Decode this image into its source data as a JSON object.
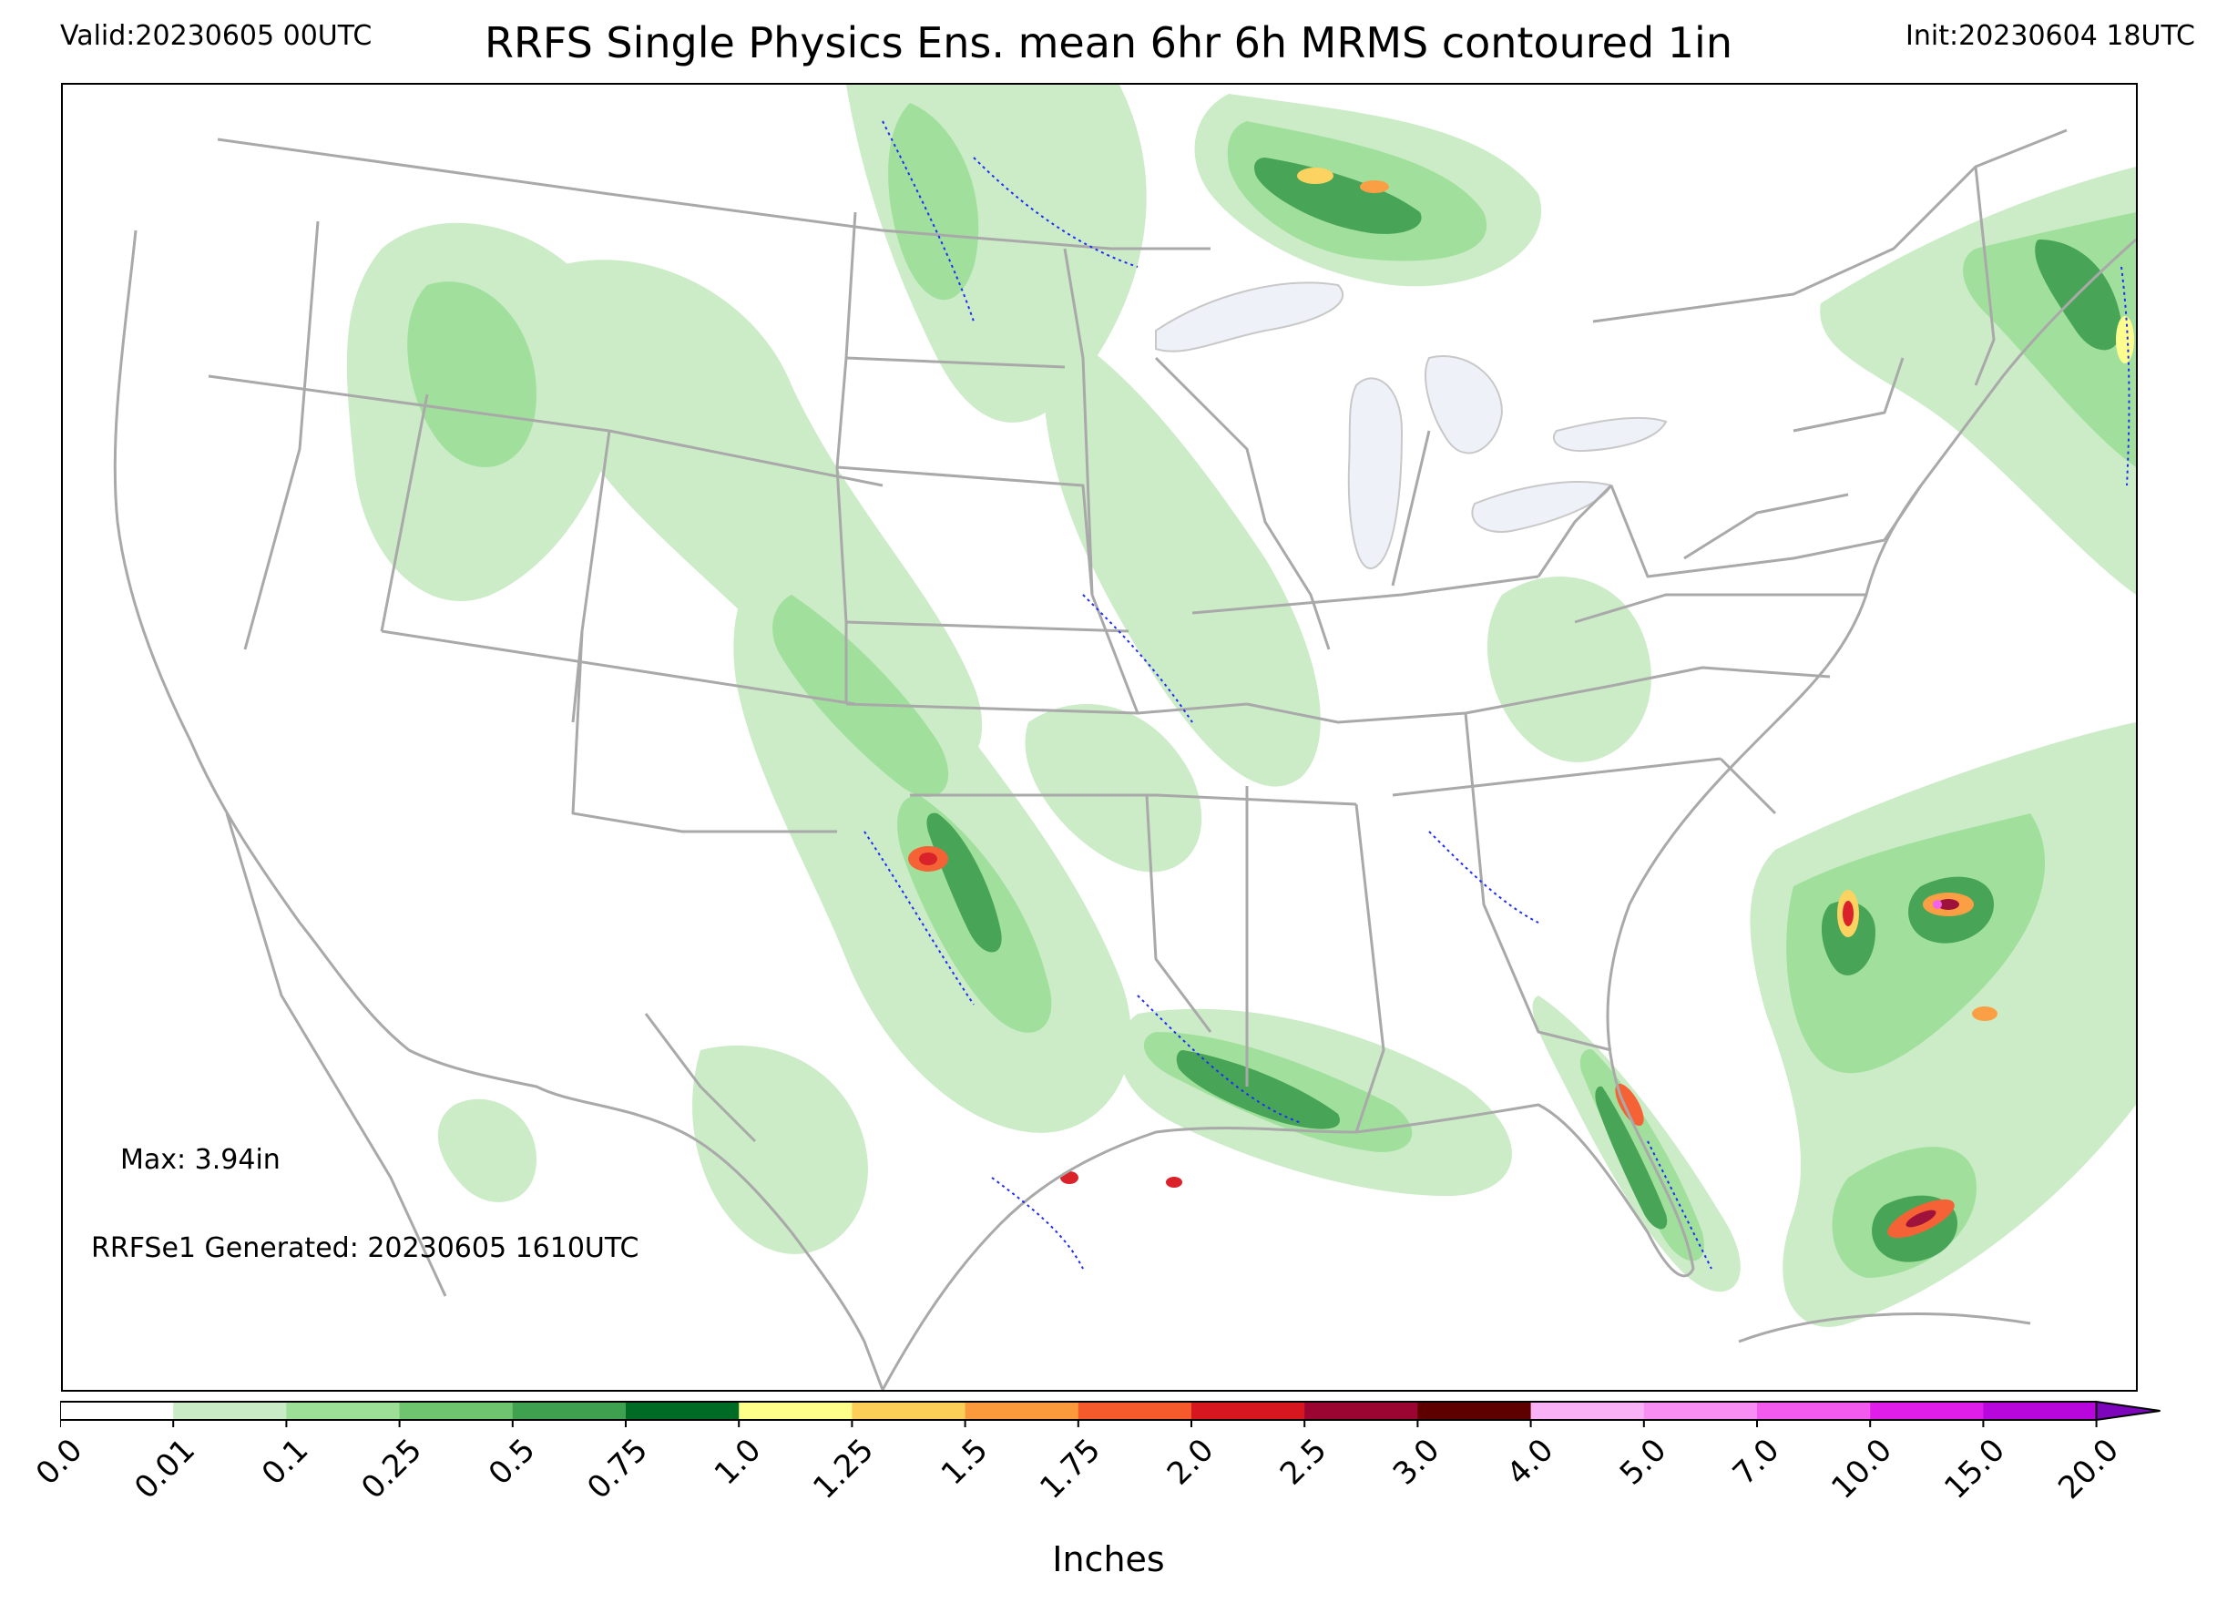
{
  "header": {
    "valid": "Valid:20230605 00UTC",
    "title": "RRFS Single Physics Ens. mean 6hr 6h MRMS contoured 1in",
    "init": "Init:20230604 18UTC"
  },
  "map": {
    "annotations": {
      "max": "Max: 3.94in",
      "generated": "RRFSe1 Generated: 20230605 1610UTC"
    },
    "colors": {
      "border": "#a9a9a9",
      "lakes": "#eef2f8",
      "contour": "#1f2bff"
    }
  },
  "colorbar": {
    "label": "Inches",
    "ticks": [
      "0.0",
      "0.01",
      "0.1",
      "0.25",
      "0.5",
      "0.75",
      "1.0",
      "1.25",
      "1.5",
      "1.75",
      "2.0",
      "2.5",
      "3.0",
      "4.0",
      "5.0",
      "7.0",
      "10.0",
      "15.0",
      "20.0"
    ],
    "colors": [
      "#ffffff",
      "#c9ebc5",
      "#9ddf97",
      "#6fc46f",
      "#3fa14f",
      "#006b25",
      "#fefe8a",
      "#fcd058",
      "#fb9a3c",
      "#f55a2c",
      "#d7171f",
      "#9a0631",
      "#5e0000",
      "#f8b2f5",
      "#f88ef4",
      "#f25bed",
      "#e01eea",
      "#b707dd",
      "#7d06bc"
    ],
    "extend": "max"
  }
}
